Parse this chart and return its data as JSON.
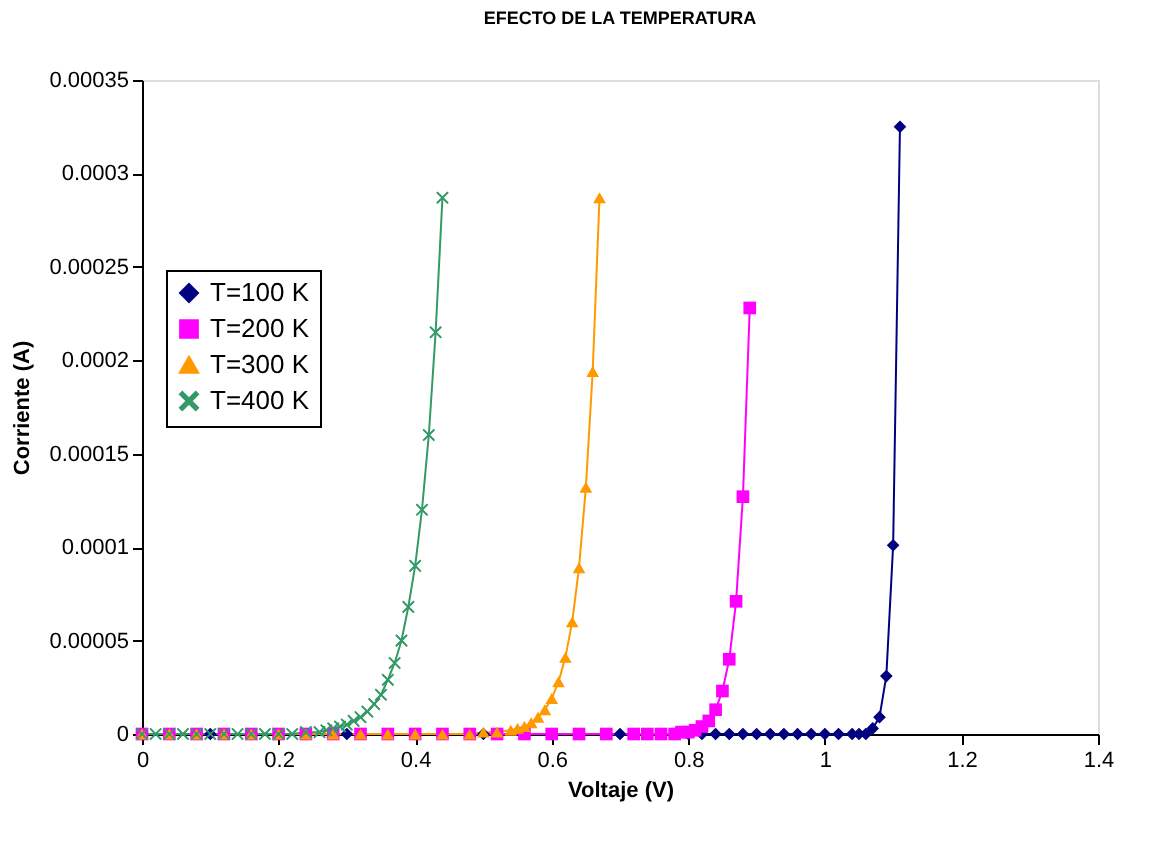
{
  "chart_data": {
    "type": "line",
    "title": "EFECTO DE LA TEMPERATURA",
    "xlabel": "Voltaje (V)",
    "ylabel": "Corriente (A)",
    "xlim": [
      0,
      1.4
    ],
    "ylim": [
      0,
      0.00035
    ],
    "xticks": [
      0,
      0.2,
      0.4,
      0.6,
      0.8,
      1,
      1.2,
      1.4
    ],
    "yticks": [
      0,
      {
        "value": 5e-05,
        "label": "0.00005"
      },
      0.0001,
      0.00015,
      0.0002,
      0.00025,
      0.0003,
      0.00035
    ],
    "grid": false,
    "legend": "left",
    "line_style": "solid",
    "series": [
      {
        "name": "T=100 K",
        "color": "#000080",
        "marker": "diamond",
        "x": [
          0,
          0.1,
          0.2,
          0.3,
          0.4,
          0.5,
          0.6,
          0.7,
          0.8,
          0.82,
          0.84,
          0.86,
          0.88,
          0.9,
          0.92,
          0.94,
          0.96,
          0.98,
          1,
          1.02,
          1.04,
          1.05,
          1.06,
          1.07,
          1.08,
          1.09,
          1.1,
          1.11
        ],
        "values": [
          0,
          0,
          0,
          0,
          0,
          0,
          0,
          0,
          0,
          0,
          0,
          0,
          0,
          0,
          0,
          0,
          0,
          0,
          0,
          0,
          0,
          0,
          0,
          3e-06,
          9e-06,
          3.1e-05,
          0.000101,
          0.000325
        ]
      },
      {
        "name": "T=200 K",
        "color": "#ff00ff",
        "marker": "square",
        "x": [
          0,
          0.04,
          0.08,
          0.12,
          0.16,
          0.2,
          0.24,
          0.28,
          0.32,
          0.36,
          0.4,
          0.44,
          0.48,
          0.52,
          0.56,
          0.6,
          0.64,
          0.68,
          0.72,
          0.74,
          0.76,
          0.78,
          0.79,
          0.8,
          0.81,
          0.82,
          0.83,
          0.84,
          0.85,
          0.86,
          0.87,
          0.88,
          0.89
        ],
        "values": [
          0,
          0,
          0,
          0,
          0,
          0,
          0,
          0,
          0,
          0,
          0,
          0,
          0,
          0,
          0,
          0,
          0,
          0,
          0,
          0,
          0,
          0,
          1e-06,
          1e-06,
          2e-06,
          4e-06,
          7e-06,
          1.3e-05,
          2.3e-05,
          4e-05,
          7.1e-05,
          0.000127,
          0.000228
        ]
      },
      {
        "name": "T=300 K",
        "color": "#ff9900",
        "marker": "triangle",
        "x": [
          0,
          0.04,
          0.08,
          0.12,
          0.16,
          0.2,
          0.24,
          0.28,
          0.32,
          0.36,
          0.4,
          0.44,
          0.48,
          0.5,
          0.52,
          0.54,
          0.55,
          0.56,
          0.57,
          0.58,
          0.59,
          0.6,
          0.61,
          0.62,
          0.63,
          0.64,
          0.65,
          0.66,
          0.67
        ],
        "values": [
          0,
          0,
          0,
          0,
          0,
          0,
          0,
          0,
          0,
          0,
          0,
          0,
          0,
          1e-06,
          1e-06,
          2e-06,
          3e-06,
          4e-06,
          6e-06,
          9e-06,
          1.3e-05,
          1.9e-05,
          2.8e-05,
          4.1e-05,
          6e-05,
          8.9e-05,
          0.000132,
          0.000194,
          0.000287
        ]
      },
      {
        "name": "T=400 K",
        "color": "#339966",
        "marker": "cross",
        "x": [
          0,
          0.02,
          0.04,
          0.06,
          0.08,
          0.1,
          0.12,
          0.14,
          0.16,
          0.18,
          0.2,
          0.22,
          0.24,
          0.26,
          0.27,
          0.28,
          0.29,
          0.3,
          0.31,
          0.32,
          0.33,
          0.34,
          0.35,
          0.36,
          0.37,
          0.38,
          0.39,
          0.4,
          0.41,
          0.42,
          0.43,
          0.44
        ],
        "values": [
          0,
          0,
          0,
          0,
          0,
          0,
          0,
          0,
          0,
          0,
          0,
          0,
          1e-06,
          1e-06,
          2e-06,
          3e-06,
          4e-06,
          5e-06,
          7e-06,
          9e-06,
          1.2e-05,
          1.6e-05,
          2.1e-05,
          2.9e-05,
          3.8e-05,
          5e-05,
          6.8e-05,
          9e-05,
          0.00012,
          0.00016,
          0.000215,
          0.000287
        ]
      }
    ]
  }
}
